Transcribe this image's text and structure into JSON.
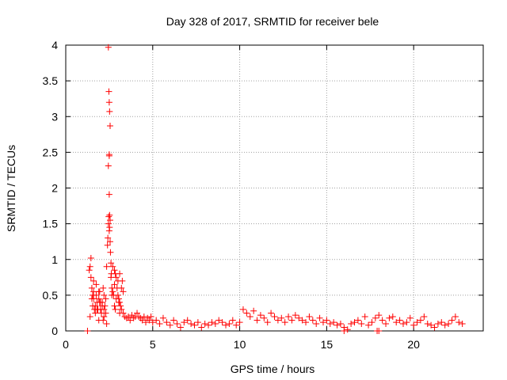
{
  "chart_data": {
    "type": "scatter",
    "title": "Day 328 of 2017, SRMTID for receiver bele",
    "xlabel": "GPS time / hours",
    "ylabel": "SRMTID / TECUs",
    "xlim": [
      0,
      24
    ],
    "ylim": [
      0,
      4
    ],
    "xticks": [
      0,
      5,
      10,
      15,
      20
    ],
    "yticks": [
      0,
      0.5,
      1,
      1.5,
      2,
      2.5,
      3,
      3.5,
      4
    ],
    "xtick_labels": [
      "0",
      "5",
      "10",
      "15",
      "20"
    ],
    "ytick_labels": [
      "0",
      "0.5",
      "1",
      "1.5",
      "2",
      "2.5",
      "3",
      "3.5",
      "4"
    ],
    "grid": true,
    "marker": "+",
    "color": "#ff0000",
    "series": [
      {
        "name": "SRMTID",
        "x": [
          1.25,
          1.35,
          1.4,
          1.45,
          1.5,
          1.55,
          1.6,
          1.65,
          1.7,
          1.75,
          1.8,
          1.85,
          1.9,
          1.95,
          2.0,
          2.05,
          2.1,
          2.15,
          2.2,
          2.25,
          2.3,
          2.35,
          2.4,
          2.42,
          2.45,
          2.47,
          2.5,
          2.52,
          2.55,
          2.57,
          2.6,
          2.62,
          2.65,
          2.7,
          2.75,
          2.8,
          2.85,
          2.9,
          2.95,
          3.0,
          3.05,
          3.1,
          3.15,
          3.2,
          3.3,
          3.4,
          3.5,
          3.6,
          3.7,
          3.8,
          3.9,
          4.0,
          4.1,
          4.2,
          4.3,
          4.4,
          4.5,
          4.6,
          4.7,
          4.8,
          4.9,
          5.0,
          5.2,
          5.4,
          5.6,
          5.8,
          6.0,
          6.2,
          6.4,
          6.6,
          6.8,
          7.0,
          7.2,
          7.4,
          7.6,
          7.8,
          8.0,
          8.2,
          8.4,
          8.6,
          8.8,
          9.0,
          9.2,
          9.4,
          9.6,
          9.8,
          10.0,
          10.2,
          10.4,
          10.6,
          10.8,
          11.0,
          11.2,
          11.4,
          11.6,
          11.8,
          12.0,
          12.2,
          12.4,
          12.6,
          12.8,
          13.0,
          13.2,
          13.4,
          13.6,
          13.8,
          14.0,
          14.2,
          14.4,
          14.6,
          14.8,
          15.0,
          15.2,
          15.4,
          15.6,
          15.8,
          16.0,
          16.2,
          16.4,
          16.6,
          16.8,
          17.0,
          17.2,
          17.4,
          17.6,
          17.8,
          18.0,
          18.2,
          18.4,
          18.6,
          18.8,
          19.0,
          19.2,
          19.4,
          19.6,
          19.8,
          20.0,
          20.2,
          20.4,
          20.6,
          20.8,
          21.0,
          21.2,
          21.4,
          21.6,
          21.8,
          22.0,
          22.2,
          22.4,
          22.6,
          22.8,
          2.45,
          2.48,
          2.5,
          2.52,
          2.55,
          1.45,
          1.5,
          1.6,
          1.7,
          1.8,
          1.9,
          2.0,
          2.1,
          2.2,
          2.3,
          2.6,
          2.7,
          2.8,
          2.9,
          3.0,
          3.1,
          3.2,
          3.3,
          1.4,
          1.55,
          1.75,
          1.95,
          2.15,
          2.35,
          2.65,
          2.85,
          3.05,
          3.25,
          1.6,
          1.9,
          2.2,
          2.5,
          2.8,
          3.1,
          16.0,
          17.9,
          18.0
        ],
        "y": [
          0.0,
          0.85,
          0.9,
          1.02,
          0.6,
          0.5,
          0.7,
          0.3,
          0.35,
          0.65,
          0.4,
          0.3,
          0.45,
          0.55,
          0.3,
          0.25,
          0.4,
          0.6,
          0.2,
          0.35,
          0.45,
          0.9,
          1.2,
          1.3,
          1.5,
          1.6,
          1.4,
          1.45,
          1.25,
          1.1,
          0.95,
          0.8,
          0.6,
          0.55,
          0.5,
          0.65,
          0.8,
          0.75,
          0.6,
          0.5,
          0.45,
          0.4,
          0.35,
          0.3,
          0.25,
          0.2,
          0.18,
          0.2,
          0.15,
          0.22,
          0.18,
          0.2,
          0.25,
          0.2,
          0.18,
          0.15,
          0.2,
          0.12,
          0.18,
          0.15,
          0.2,
          0.12,
          0.15,
          0.1,
          0.18,
          0.12,
          0.08,
          0.15,
          0.1,
          0.05,
          0.12,
          0.15,
          0.1,
          0.08,
          0.12,
          0.05,
          0.1,
          0.08,
          0.12,
          0.1,
          0.15,
          0.12,
          0.08,
          0.1,
          0.15,
          0.08,
          0.12,
          0.3,
          0.25,
          0.2,
          0.28,
          0.15,
          0.22,
          0.18,
          0.12,
          0.25,
          0.2,
          0.15,
          0.18,
          0.12,
          0.2,
          0.15,
          0.22,
          0.18,
          0.15,
          0.12,
          0.2,
          0.15,
          0.1,
          0.18,
          0.12,
          0.15,
          0.1,
          0.12,
          0.08,
          0.1,
          0.05,
          0.02,
          0.1,
          0.12,
          0.15,
          0.1,
          0.2,
          0.08,
          0.12,
          0.18,
          0.22,
          0.15,
          0.1,
          0.18,
          0.2,
          0.12,
          0.15,
          0.1,
          0.12,
          0.18,
          0.08,
          0.12,
          0.15,
          0.2,
          0.1,
          0.08,
          0.05,
          0.1,
          0.12,
          0.08,
          0.1,
          0.15,
          0.2,
          0.12,
          0.1,
          3.97,
          3.35,
          3.2,
          3.07,
          2.87,
          0.75,
          0.45,
          0.55,
          0.25,
          0.3,
          0.15,
          0.4,
          0.35,
          0.5,
          0.25,
          0.75,
          0.9,
          0.85,
          0.45,
          0.7,
          0.8,
          0.6,
          0.55,
          0.2,
          0.35,
          0.5,
          0.4,
          0.15,
          0.1,
          0.5,
          0.3,
          0.4,
          0.7,
          0.45,
          0.55,
          0.3,
          2.47,
          0.35,
          0.25,
          0.0,
          0.0,
          0.0
        ]
      }
    ],
    "extra_points": {
      "x": [
        2.45,
        2.5,
        2.55,
        2.5,
        2.52
      ],
      "y": [
        2.31,
        1.91,
        1.55,
        2.45,
        1.62
      ]
    }
  }
}
